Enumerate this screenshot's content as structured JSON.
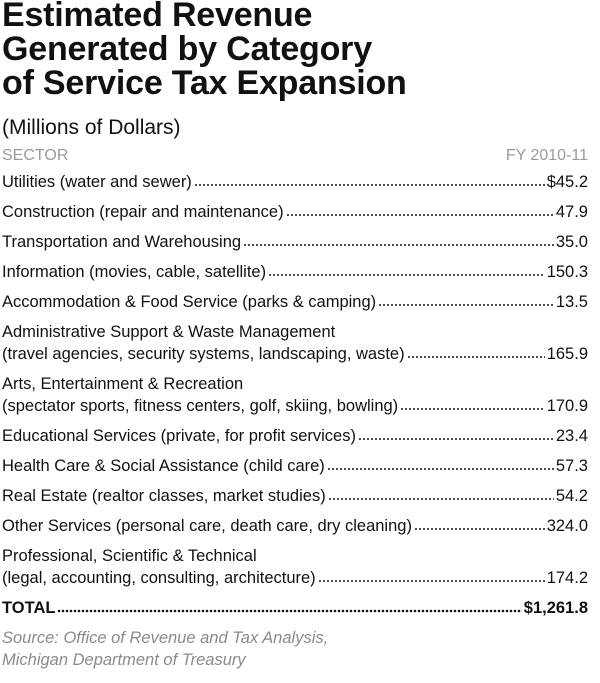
{
  "header": {
    "title_lines": [
      "Estimated Revenue",
      "Generated by Category",
      "of Service Tax Expansion"
    ],
    "subtitle": "(Millions of Dollars)"
  },
  "table": {
    "columns": [
      "SECTOR",
      "FY 2010-11"
    ],
    "rows": [
      {
        "label_lines": [
          "Utilities (water and sewer)"
        ],
        "value": "$45.2"
      },
      {
        "label_lines": [
          "Construction (repair and maintenance)"
        ],
        "value": "47.9"
      },
      {
        "label_lines": [
          "Transportation and Warehousing"
        ],
        "value": "35.0"
      },
      {
        "label_lines": [
          "Information (movies, cable, satellite)"
        ],
        "value": "150.3"
      },
      {
        "label_lines": [
          "Accommodation & Food Service (parks & camping)"
        ],
        "value": "13.5"
      },
      {
        "label_lines": [
          "Administrative Support & Waste Management",
          "(travel agencies, security systems, landscaping, waste)"
        ],
        "value": "165.9"
      },
      {
        "label_lines": [
          "Arts, Entertainment & Recreation",
          "(spectator sports, fitness centers, golf, skiing, bowling)"
        ],
        "value": "170.9"
      },
      {
        "label_lines": [
          "Educational Services (private, for profit services)"
        ],
        "value": "23.4"
      },
      {
        "label_lines": [
          "Health Care & Social Assistance (child care)"
        ],
        "value": "57.3"
      },
      {
        "label_lines": [
          "Real Estate (realtor classes, market studies)"
        ],
        "value": "54.2"
      },
      {
        "label_lines": [
          "Other Services (personal care, death care, dry cleaning)"
        ],
        "value": "324.0"
      },
      {
        "label_lines": [
          "Professional, Scientific & Technical",
          "(legal, accounting, consulting, architecture)"
        ],
        "value": "174.2"
      }
    ],
    "total": {
      "label": "TOTAL",
      "value": "$1,261.8"
    }
  },
  "source_lines": [
    "Source: Office of Revenue and Tax Analysis,",
    "Michigan Department of Treasury"
  ]
}
